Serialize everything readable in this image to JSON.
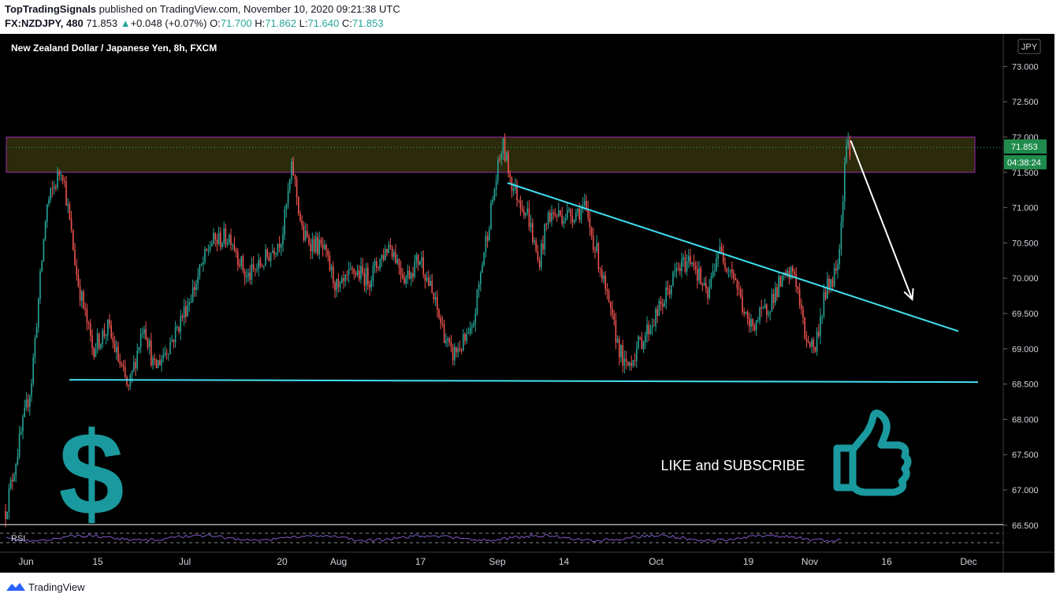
{
  "header": {
    "publisher": "TopTradingSignals",
    "published_text": "published on TradingView.com, November 10, 2020 09:21:38 UTC",
    "symbol": "FX:NZDJPY, 480",
    "last": "71.853",
    "change": "+0.048 (+0.07%)",
    "o_label": "O:",
    "o_value": "71.700",
    "h_label": "H:",
    "h_value": "71.862",
    "l_label": "L:",
    "l_value": "71.640",
    "c_label": "C:",
    "c_value": "71.853"
  },
  "chart": {
    "title": "New Zealand Dollar / Japanese Yen, 8h, FXCM",
    "currency": "JPY",
    "price_label": "71.853",
    "countdown_label": "04:38:24",
    "annotation_text": "LIKE and SUBSCRIBE",
    "rsi_label": "RSI",
    "dollar_glyph": "$",
    "colors": {
      "background": "#000000",
      "up_candle": "#26a69a",
      "down_candle": "#ef5350",
      "trendline": "#40e0f0",
      "zone_fill": "#2b2a0a",
      "zone_border": "#9c27b0",
      "rsi": "#7e57c2",
      "price_tag": "#1f8b4c",
      "dollar": "#1a9a9f"
    }
  },
  "chart_data": {
    "type": "candlestick",
    "title": "New Zealand Dollar / Japanese Yen, 8h, FXCM",
    "y_ticks": [
      "73.000",
      "72.500",
      "72.000",
      "71.500",
      "71.000",
      "70.500",
      "70.000",
      "69.500",
      "69.000",
      "68.500",
      "68.000",
      "67.500",
      "67.000",
      "66.500"
    ],
    "x_ticks": [
      "Jun",
      "15",
      "Jul",
      "20",
      "Aug",
      "17",
      "Sep",
      "14",
      "Oct",
      "19",
      "Nov",
      "16",
      "Dec"
    ],
    "ylim": [
      66.45,
      73.4
    ],
    "resistance_zone": [
      71.5,
      72.0
    ],
    "support_line": 68.55,
    "trendline": {
      "start": [
        "Sep 3",
        71.35
      ],
      "end": [
        "Nov 30",
        69.25
      ]
    },
    "projection_arrow": {
      "from": [
        "Nov 9",
        71.95
      ],
      "to": [
        "Nov 21",
        69.7
      ]
    },
    "close_price": 71.853,
    "anchors": [
      {
        "date": "May 28",
        "price": 66.7
      },
      {
        "date": "Jun 2",
        "price": 68.5
      },
      {
        "date": "Jun 5",
        "price": 71.0
      },
      {
        "date": "Jun 8",
        "price": 71.6
      },
      {
        "date": "Jun 11",
        "price": 70.0
      },
      {
        "date": "Jun 14",
        "price": 69.0
      },
      {
        "date": "Jun 17",
        "price": 69.3
      },
      {
        "date": "Jun 21",
        "price": 68.4
      },
      {
        "date": "Jun 24",
        "price": 69.4
      },
      {
        "date": "Jun 26",
        "price": 68.7
      },
      {
        "date": "Jun 30",
        "price": 69.2
      },
      {
        "date": "Jul 3",
        "price": 69.9
      },
      {
        "date": "Jul 6",
        "price": 70.5
      },
      {
        "date": "Jul 10",
        "price": 70.6
      },
      {
        "date": "Jul 13",
        "price": 70.0
      },
      {
        "date": "Jul 16",
        "price": 70.2
      },
      {
        "date": "Jul 20",
        "price": 70.6
      },
      {
        "date": "Jul 22",
        "price": 71.6
      },
      {
        "date": "Jul 24",
        "price": 70.6
      },
      {
        "date": "Jul 28",
        "price": 70.4
      },
      {
        "date": "Jul 31",
        "price": 69.8
      },
      {
        "date": "Aug 4",
        "price": 70.1
      },
      {
        "date": "Aug 7",
        "price": 70.0
      },
      {
        "date": "Aug 11",
        "price": 70.5
      },
      {
        "date": "Aug 14",
        "price": 70.0
      },
      {
        "date": "Aug 17",
        "price": 70.3
      },
      {
        "date": "Aug 20",
        "price": 69.6
      },
      {
        "date": "Aug 23",
        "price": 68.9
      },
      {
        "date": "Aug 27",
        "price": 69.2
      },
      {
        "date": "Aug 29",
        "price": 70.2
      },
      {
        "date": "Sep 1",
        "price": 71.5
      },
      {
        "date": "Sep 2",
        "price": 71.9
      },
      {
        "date": "Sep 4",
        "price": 71.3
      },
      {
        "date": "Sep 7",
        "price": 70.9
      },
      {
        "date": "Sep 9",
        "price": 70.2
      },
      {
        "date": "Sep 11",
        "price": 70.9
      },
      {
        "date": "Sep 15",
        "price": 70.9
      },
      {
        "date": "Sep 18",
        "price": 71.0
      },
      {
        "date": "Sep 21",
        "price": 70.2
      },
      {
        "date": "Sep 23",
        "price": 69.5
      },
      {
        "date": "Sep 26",
        "price": 68.7
      },
      {
        "date": "Sep 29",
        "price": 69.1
      },
      {
        "date": "Oct 2",
        "price": 69.6
      },
      {
        "date": "Oct 5",
        "price": 70.1
      },
      {
        "date": "Oct 8",
        "price": 70.3
      },
      {
        "date": "Oct 11",
        "price": 69.7
      },
      {
        "date": "Oct 13",
        "price": 70.4
      },
      {
        "date": "Oct 16",
        "price": 70.1
      },
      {
        "date": "Oct 19",
        "price": 69.3
      },
      {
        "date": "Oct 22",
        "price": 69.5
      },
      {
        "date": "Oct 25",
        "price": 69.9
      },
      {
        "date": "Oct 28",
        "price": 70.1
      },
      {
        "date": "Oct 30",
        "price": 69.2
      },
      {
        "date": "Nov 2",
        "price": 69.0
      },
      {
        "date": "Nov 4",
        "price": 69.8
      },
      {
        "date": "Nov 6",
        "price": 70.1
      },
      {
        "date": "Nov 7",
        "price": 70.6
      },
      {
        "date": "Nov 8",
        "price": 71.9
      },
      {
        "date": "Nov 9",
        "price": 71.85
      }
    ]
  },
  "footer": {
    "brand": "TradingView"
  }
}
